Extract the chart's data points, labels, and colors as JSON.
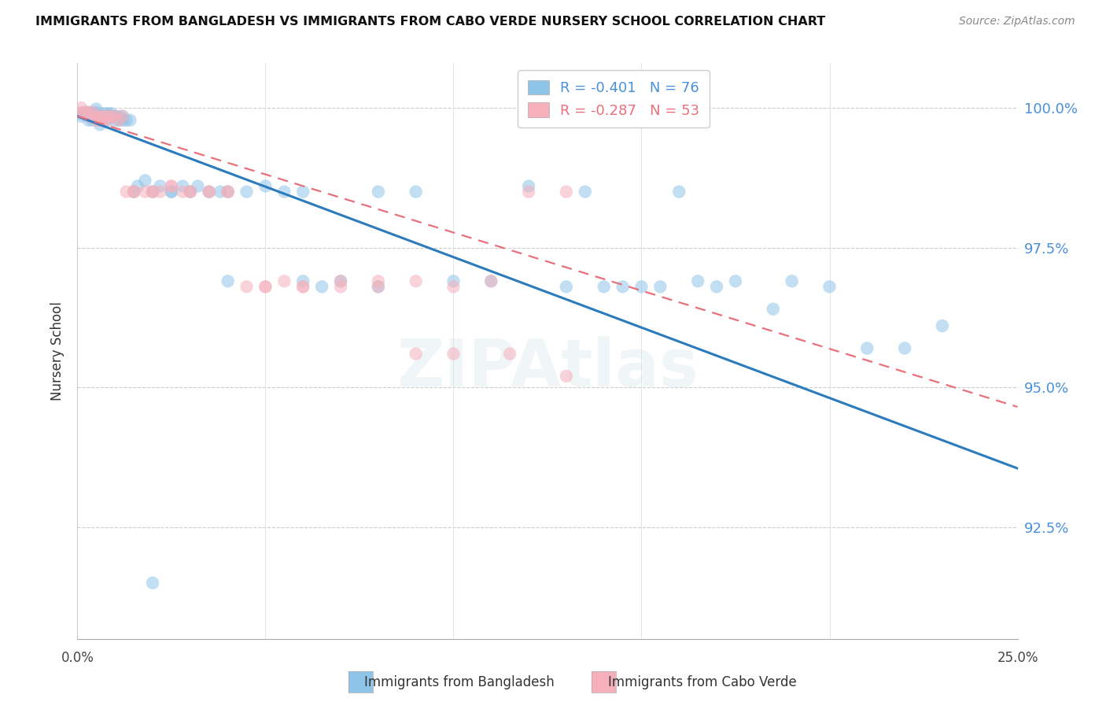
{
  "title": "IMMIGRANTS FROM BANGLADESH VS IMMIGRANTS FROM CABO VERDE NURSERY SCHOOL CORRELATION CHART",
  "source": "Source: ZipAtlas.com",
  "ylabel": "Nursery School",
  "ytick_labels": [
    "100.0%",
    "97.5%",
    "95.0%",
    "92.5%"
  ],
  "ytick_values": [
    1.0,
    0.975,
    0.95,
    0.925
  ],
  "xlim": [
    0.0,
    0.25
  ],
  "ylim": [
    0.905,
    1.008
  ],
  "legend_blue_r": "-0.401",
  "legend_blue_n": "76",
  "legend_pink_r": "-0.287",
  "legend_pink_n": "53",
  "legend_label_blue": "Immigrants from Bangladesh",
  "legend_label_pink": "Immigrants from Cabo Verde",
  "blue_color": "#8ec4e8",
  "pink_color": "#f5b0bc",
  "trend_blue_color": "#2b7bbd",
  "trend_pink_color": "#e8707a",
  "trend_blue_x0": 0.0,
  "trend_blue_y0": 0.9985,
  "trend_blue_x1": 0.25,
  "trend_blue_y1": 0.9355,
  "trend_pink_x0": 0.0,
  "trend_pink_y0": 0.9985,
  "trend_pink_x1": 0.25,
  "trend_pink_y1": 0.9465,
  "blue_scatter_x": [
    0.001,
    0.001,
    0.002,
    0.002,
    0.003,
    0.003,
    0.003,
    0.004,
    0.004,
    0.004,
    0.005,
    0.005,
    0.005,
    0.006,
    0.006,
    0.006,
    0.007,
    0.007,
    0.007,
    0.008,
    0.008,
    0.008,
    0.009,
    0.009,
    0.01,
    0.01,
    0.011,
    0.011,
    0.012,
    0.012,
    0.013,
    0.014,
    0.015,
    0.016,
    0.018,
    0.02,
    0.022,
    0.025,
    0.028,
    0.03,
    0.032,
    0.035,
    0.038,
    0.04,
    0.045,
    0.05,
    0.055,
    0.06,
    0.065,
    0.07,
    0.08,
    0.09,
    0.1,
    0.11,
    0.12,
    0.13,
    0.145,
    0.155,
    0.17,
    0.185,
    0.2,
    0.21,
    0.22,
    0.23,
    0.16,
    0.15,
    0.14,
    0.135,
    0.19,
    0.175,
    0.165,
    0.025,
    0.02,
    0.04,
    0.06,
    0.08
  ],
  "blue_scatter_y": [
    0.999,
    0.9985,
    0.9992,
    0.9988,
    0.9992,
    0.9985,
    0.9978,
    0.999,
    0.9985,
    0.9978,
    0.9992,
    0.9985,
    0.9998,
    0.9985,
    0.9978,
    0.997,
    0.999,
    0.9985,
    0.9978,
    0.999,
    0.9985,
    0.9978,
    0.999,
    0.9985,
    0.9985,
    0.9978,
    0.9985,
    0.9978,
    0.9985,
    0.9978,
    0.9978,
    0.9978,
    0.985,
    0.986,
    0.987,
    0.985,
    0.986,
    0.985,
    0.986,
    0.985,
    0.986,
    0.985,
    0.985,
    0.985,
    0.985,
    0.986,
    0.985,
    0.985,
    0.968,
    0.969,
    0.985,
    0.985,
    0.969,
    0.969,
    0.986,
    0.968,
    0.968,
    0.968,
    0.968,
    0.964,
    0.968,
    0.957,
    0.957,
    0.961,
    0.985,
    0.968,
    0.968,
    0.985,
    0.969,
    0.969,
    0.969,
    0.985,
    0.915,
    0.969,
    0.969,
    0.968
  ],
  "pink_scatter_x": [
    0.001,
    0.001,
    0.002,
    0.003,
    0.003,
    0.004,
    0.005,
    0.005,
    0.006,
    0.006,
    0.007,
    0.007,
    0.008,
    0.008,
    0.009,
    0.01,
    0.011,
    0.012,
    0.013,
    0.015,
    0.018,
    0.02,
    0.022,
    0.025,
    0.028,
    0.03,
    0.035,
    0.04,
    0.045,
    0.05,
    0.055,
    0.06,
    0.07,
    0.08,
    0.09,
    0.1,
    0.11,
    0.12,
    0.13,
    0.015,
    0.02,
    0.025,
    0.03,
    0.035,
    0.04,
    0.05,
    0.06,
    0.07,
    0.08,
    0.09,
    0.1,
    0.115,
    0.13
  ],
  "pink_scatter_y": [
    1.0,
    0.9992,
    0.9992,
    0.9992,
    0.9985,
    0.9992,
    0.9985,
    0.9978,
    0.9985,
    0.9978,
    0.9985,
    0.9978,
    0.9985,
    0.9978,
    0.9985,
    0.9985,
    0.9978,
    0.9985,
    0.985,
    0.985,
    0.985,
    0.985,
    0.985,
    0.986,
    0.985,
    0.985,
    0.985,
    0.985,
    0.968,
    0.968,
    0.969,
    0.968,
    0.968,
    0.968,
    0.969,
    0.968,
    0.969,
    0.985,
    0.985,
    0.985,
    0.985,
    0.986,
    0.985,
    0.985,
    0.985,
    0.968,
    0.968,
    0.969,
    0.969,
    0.956,
    0.956,
    0.956,
    0.952
  ]
}
